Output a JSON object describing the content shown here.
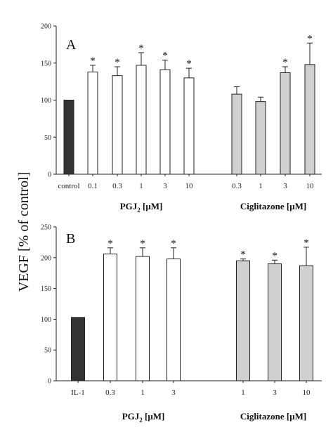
{
  "y_label": "VEGF [% of control]",
  "chart_data": [
    {
      "type": "bar",
      "panel": "A",
      "ylim": [
        0,
        200
      ],
      "yticks": [
        0,
        50,
        100,
        150,
        200
      ],
      "categories": [
        "control",
        "0.1",
        "0.3",
        "1",
        "3",
        "10",
        "0.3",
        "1",
        "3",
        "10"
      ],
      "values": [
        100,
        138,
        133,
        147,
        141,
        130,
        108,
        98,
        137,
        148
      ],
      "errors": [
        0,
        9,
        12,
        17,
        13,
        13,
        10,
        6,
        8,
        29
      ],
      "significant": [
        false,
        true,
        true,
        true,
        true,
        true,
        false,
        false,
        true,
        true
      ],
      "fill": [
        "#333333",
        "#ffffff",
        "#ffffff",
        "#ffffff",
        "#ffffff",
        "#ffffff",
        "#d0d0d0",
        "#d0d0d0",
        "#d0d0d0",
        "#d0d0d0"
      ],
      "group_labels": [
        {
          "main": "PGJ",
          "sub": "2",
          "rest": " [μM]"
        },
        {
          "main": "Ciglitazone [μM]",
          "sub": "",
          "rest": ""
        }
      ]
    },
    {
      "type": "bar",
      "panel": "B",
      "ylim": [
        0,
        250
      ],
      "yticks": [
        0,
        50,
        100,
        150,
        200,
        250
      ],
      "categories": [
        "IL-1",
        "0.3",
        "1",
        "3",
        "1",
        "3",
        "10"
      ],
      "values": [
        103,
        206,
        202,
        198,
        195,
        190,
        187
      ],
      "errors": [
        0,
        10,
        14,
        18,
        3,
        6,
        30
      ],
      "significant": [
        false,
        true,
        true,
        true,
        true,
        true,
        true
      ],
      "fill": [
        "#333333",
        "#ffffff",
        "#ffffff",
        "#ffffff",
        "#d0d0d0",
        "#d0d0d0",
        "#d0d0d0"
      ],
      "group_labels": [
        {
          "main": "PGJ",
          "sub": "2",
          "rest": " [μM]"
        },
        {
          "main": "Ciglitazone [μM]",
          "sub": "",
          "rest": ""
        }
      ]
    }
  ]
}
